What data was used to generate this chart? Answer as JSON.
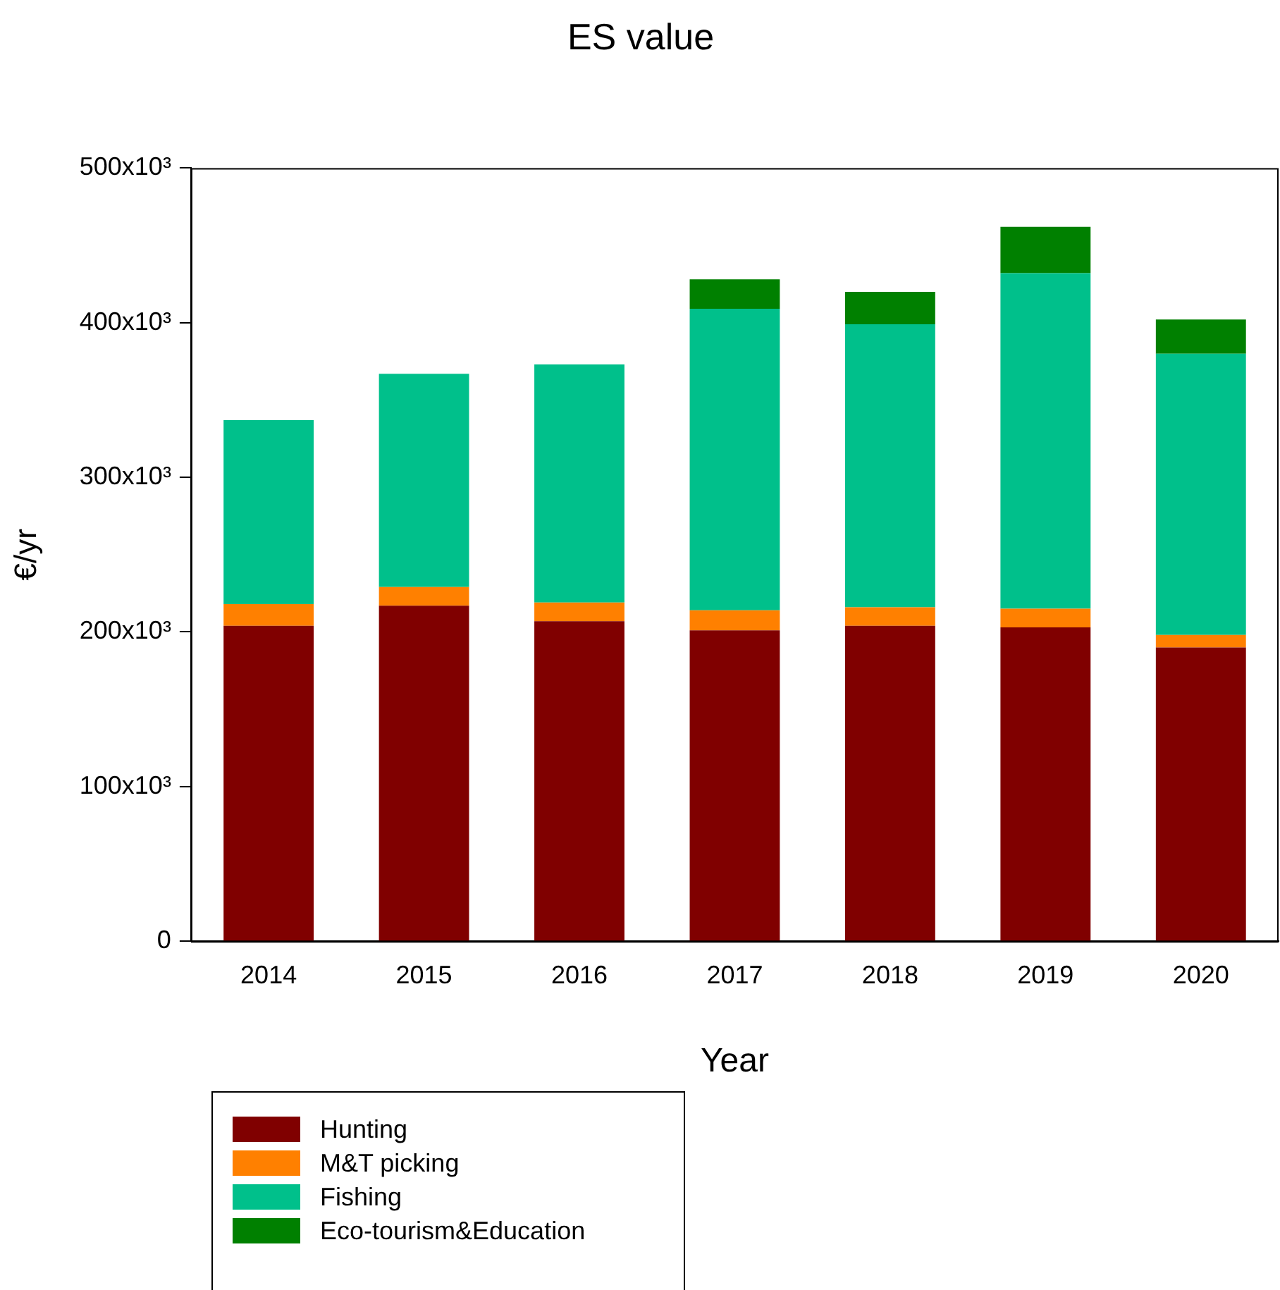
{
  "chart_data": {
    "type": "bar",
    "title": "ES value",
    "xlabel": "Year",
    "ylabel": "€/yr",
    "stacked": true,
    "grid": false,
    "legend": "bottom left",
    "categories": [
      "2014",
      "2015",
      "2016",
      "2017",
      "2018",
      "2019",
      "2020"
    ],
    "series": [
      {
        "name": "Hunting",
        "color": "#800000",
        "values": [
          204000,
          217000,
          207000,
          201000,
          204000,
          203000,
          190000
        ]
      },
      {
        "name": "M&T picking",
        "color": "#ff8000",
        "values": [
          14000,
          12000,
          12000,
          13000,
          12000,
          12000,
          8000
        ]
      },
      {
        "name": "Fishing",
        "color": "#00c08b",
        "values": [
          119000,
          138000,
          154000,
          195000,
          183000,
          217000,
          182000
        ]
      },
      {
        "name": "Eco-tourism&Education",
        "color": "#008000",
        "values": [
          null,
          null,
          null,
          19000,
          21000,
          30000,
          22000
        ]
      }
    ],
    "ylim": [
      0,
      500000
    ],
    "yticks": [
      0,
      {
        "value": 100000,
        "label": "100x10³"
      },
      {
        "value": 200000,
        "label": "200x10³"
      },
      {
        "value": 300000,
        "label": "300x10³"
      },
      {
        "value": 400000,
        "label": "400x10³"
      },
      {
        "value": 500000,
        "label": "500x10³"
      }
    ]
  }
}
